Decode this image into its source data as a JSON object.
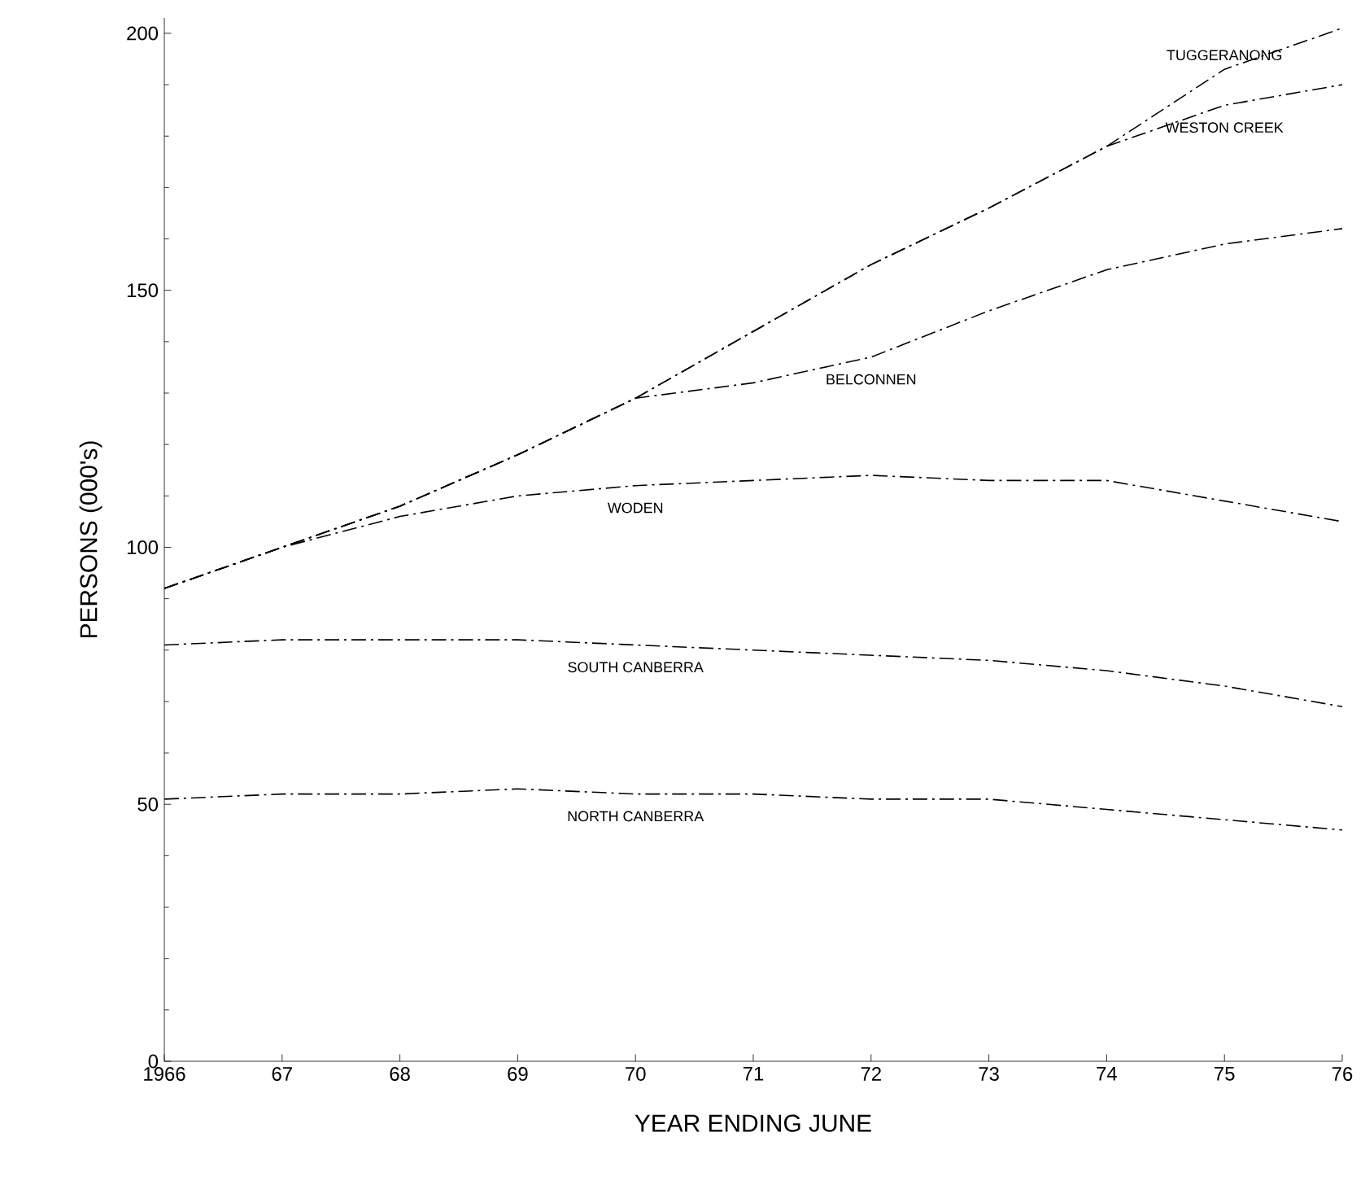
{
  "chart_data": {
    "type": "line",
    "xlabel": "YEAR ENDING JUNE",
    "ylabel": "PERSONS (000's)",
    "x": [
      1966,
      1967,
      1968,
      1969,
      1970,
      1971,
      1972,
      1973,
      1974,
      1975,
      1976
    ],
    "xlim": [
      1966,
      1976
    ],
    "xticks": [
      {
        "value": 1966,
        "label": "1966"
      },
      {
        "value": 1967,
        "label": "67"
      },
      {
        "value": 1968,
        "label": "68"
      },
      {
        "value": 1969,
        "label": "69"
      },
      {
        "value": 1970,
        "label": "70"
      },
      {
        "value": 1971,
        "label": "71"
      },
      {
        "value": 1972,
        "label": "72"
      },
      {
        "value": 1973,
        "label": "73"
      },
      {
        "value": 1974,
        "label": "74"
      },
      {
        "value": 1975,
        "label": "75"
      },
      {
        "value": 1976,
        "label": "76"
      }
    ],
    "ylim": [
      0,
      203
    ],
    "yticks": [
      0,
      50,
      100,
      150,
      200
    ],
    "line_style": "dashed",
    "grid": false,
    "legend": false,
    "series": [
      {
        "name": "NORTH CANBERRA",
        "color": "#000000",
        "values": [
          51,
          52,
          52,
          53,
          52,
          52,
          51,
          51,
          49,
          47,
          45
        ]
      },
      {
        "name": "SOUTH CANBERRA",
        "color": "#000000",
        "values": [
          81,
          82,
          82,
          82,
          81,
          80,
          79,
          78,
          76,
          73,
          69
        ]
      },
      {
        "name": "WODEN",
        "color": "#000000",
        "values": [
          92,
          100,
          106,
          110,
          112,
          113,
          114,
          113,
          113,
          109,
          105
        ]
      },
      {
        "name": "BELCONNEN",
        "color": "#000000",
        "values": [
          92,
          100,
          108,
          118,
          129,
          132,
          137,
          146,
          154,
          159,
          162
        ]
      },
      {
        "name": "WESTON CREEK",
        "color": "#000000",
        "values": [
          92,
          100,
          108,
          118,
          129,
          142,
          155,
          166,
          178,
          186,
          190
        ]
      },
      {
        "name": "TUGGERANONG",
        "color": "#000000",
        "values": [
          92,
          100,
          108,
          118,
          129,
          142,
          155,
          166,
          178,
          193,
          201
        ]
      }
    ]
  }
}
